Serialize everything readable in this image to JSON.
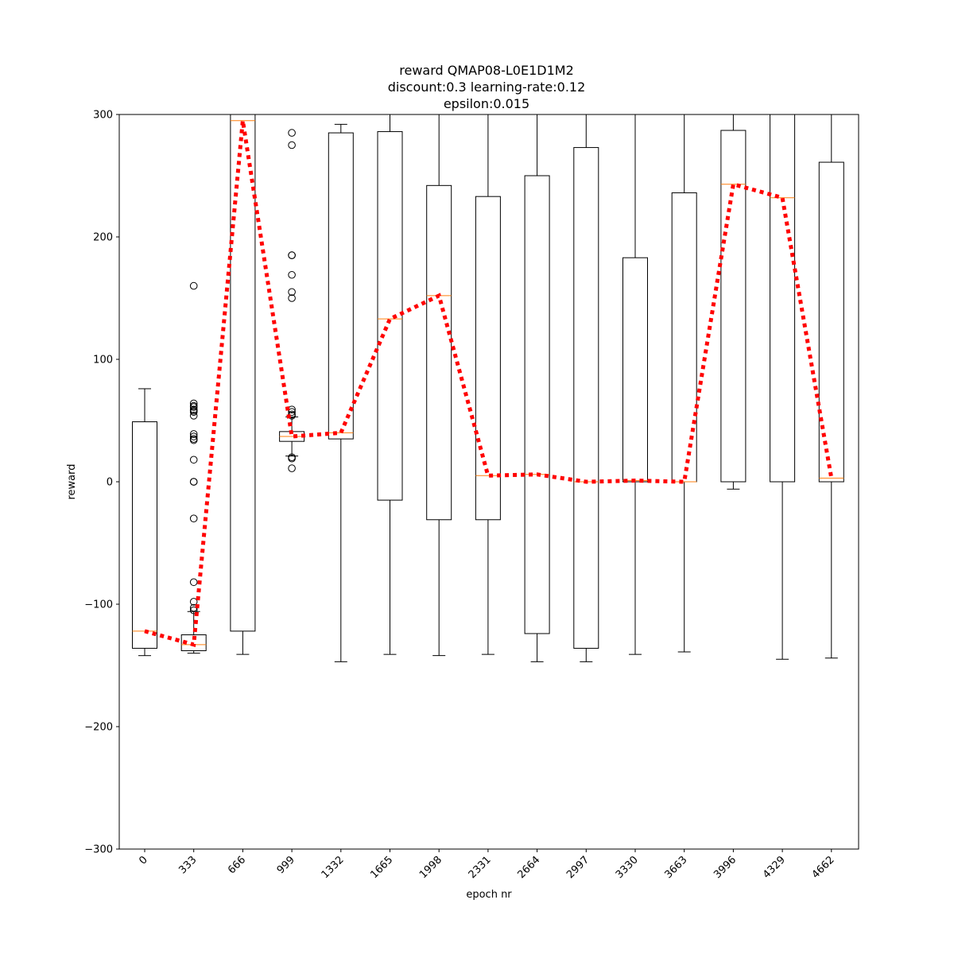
{
  "chart_data": {
    "type": "box",
    "title_lines": [
      "reward QMAP08-L0E1D1M2",
      "discount:0.3 learning-rate:0.12",
      "epsilon:0.015"
    ],
    "xlabel": "epoch nr",
    "ylabel": "reward",
    "ylim": [
      -300,
      300
    ],
    "yticks": [
      -300,
      -200,
      -100,
      0,
      100,
      200,
      300
    ],
    "ytick_labels": [
      "−300",
      "−200",
      "−100",
      "0",
      "100",
      "200",
      "300"
    ],
    "categories": [
      "0",
      "333",
      "666",
      "999",
      "1332",
      "1665",
      "1998",
      "2331",
      "2664",
      "2997",
      "3330",
      "3663",
      "3996",
      "4329",
      "4662"
    ],
    "boxes": [
      {
        "epoch": "0",
        "whislo": -142,
        "q1": -136,
        "med": -122,
        "q3": 49,
        "whishi": 76,
        "fliers": []
      },
      {
        "epoch": "333",
        "whislo": -140,
        "q1": -138,
        "med": -133,
        "q3": -125,
        "whishi": -106,
        "fliers": [
          160,
          64,
          62,
          61,
          59,
          58,
          57,
          54,
          39,
          37,
          35,
          34,
          18,
          0,
          0,
          -30,
          -82,
          -98,
          -103,
          -105
        ]
      },
      {
        "epoch": "666",
        "whislo": -141,
        "q1": -122,
        "med": 295,
        "q3": 300,
        "whishi": 300,
        "fliers": []
      },
      {
        "epoch": "999",
        "whislo": 21,
        "q1": 33,
        "med": 37,
        "q3": 41,
        "whishi": 53,
        "fliers": [
          285,
          275,
          185,
          185,
          169,
          155,
          150,
          59,
          57,
          55,
          54,
          20,
          19,
          11
        ]
      },
      {
        "epoch": "1332",
        "whislo": -147,
        "q1": 35,
        "med": 40,
        "q3": 285,
        "whishi": 292,
        "fliers": []
      },
      {
        "epoch": "1665",
        "whislo": -141,
        "q1": -15,
        "med": 133,
        "q3": 286,
        "whishi": 300,
        "fliers": []
      },
      {
        "epoch": "1998",
        "whislo": -142,
        "q1": -31,
        "med": 152,
        "q3": 242,
        "whishi": 300,
        "fliers": []
      },
      {
        "epoch": "2331",
        "whislo": -141,
        "q1": -31,
        "med": 5,
        "q3": 233,
        "whishi": 300,
        "fliers": []
      },
      {
        "epoch": "2664",
        "whislo": -147,
        "q1": -124,
        "med": 6,
        "q3": 250,
        "whishi": 300,
        "fliers": []
      },
      {
        "epoch": "2997",
        "whislo": -147,
        "q1": -136,
        "med": 0,
        "q3": 273,
        "whishi": 300,
        "fliers": []
      },
      {
        "epoch": "3330",
        "whislo": -141,
        "q1": 0,
        "med": 1,
        "q3": 183,
        "whishi": 300,
        "fliers": []
      },
      {
        "epoch": "3663",
        "whislo": -139,
        "q1": 0,
        "med": 0,
        "q3": 236,
        "whishi": 300,
        "fliers": []
      },
      {
        "epoch": "3996",
        "whislo": -6,
        "q1": 0,
        "med": 243,
        "q3": 287,
        "whishi": 300,
        "fliers": []
      },
      {
        "epoch": "4329",
        "whislo": -145,
        "q1": 0,
        "med": 232,
        "q3": 300,
        "whishi": 300,
        "fliers": []
      },
      {
        "epoch": "4662",
        "whislo": -144,
        "q1": 0,
        "med": 3,
        "q3": 261,
        "whishi": 300,
        "fliers": []
      }
    ],
    "series": [
      {
        "values": [
          -122,
          -133,
          295,
          37,
          40,
          133,
          152,
          5,
          6,
          0,
          1,
          0,
          243,
          232,
          3
        ]
      }
    ],
    "colors": {
      "box": "#000000",
      "median": "#ff7f0e",
      "trend": "#ff0000"
    },
    "grid": false
  }
}
